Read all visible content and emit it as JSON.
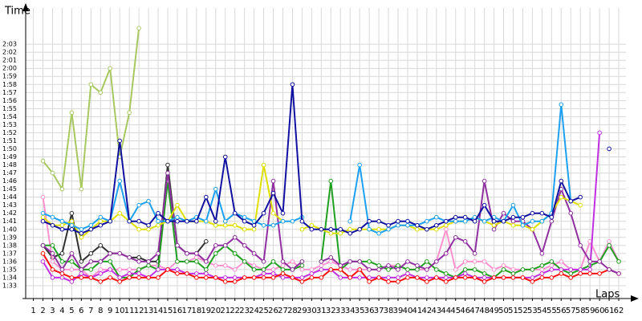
{
  "chart_data": {
    "type": "line",
    "xlabel": "Laps",
    "ylabel": "Time",
    "x": [
      1,
      2,
      3,
      4,
      5,
      6,
      7,
      8,
      9,
      10,
      11,
      12,
      13,
      14,
      15,
      16,
      17,
      18,
      19,
      20,
      21,
      22,
      23,
      24,
      25,
      26,
      27,
      28,
      29,
      30,
      31,
      32,
      33,
      34,
      35,
      36,
      37,
      38,
      39,
      40,
      41,
      42,
      43,
      44,
      45,
      46,
      47,
      48,
      49,
      50,
      51,
      52,
      53,
      54,
      55,
      56,
      57,
      58,
      59,
      60,
      61,
      62
    ],
    "xlim": [
      0.2,
      62.75
    ],
    "xticks": [
      1,
      2,
      3,
      4,
      5,
      6,
      7,
      8,
      9,
      10,
      11,
      12,
      13,
      14,
      15,
      16,
      17,
      18,
      19,
      20,
      21,
      22,
      23,
      24,
      25,
      26,
      27,
      28,
      29,
      30,
      31,
      32,
      33,
      34,
      35,
      36,
      37,
      38,
      39,
      40,
      41,
      42,
      43,
      44,
      45,
      46,
      47,
      48,
      49,
      50,
      51,
      52,
      53,
      54,
      55,
      56,
      57,
      58,
      59,
      60,
      61,
      62
    ],
    "ylim": [
      91.4,
      127.5
    ],
    "yticks": [
      {
        "value": 93,
        "label": "1:33"
      },
      {
        "value": 94,
        "label": "1:34"
      },
      {
        "value": 95,
        "label": "1:35"
      },
      {
        "value": 96,
        "label": "1:36"
      },
      {
        "value": 97,
        "label": "1:37"
      },
      {
        "value": 98,
        "label": "1:38"
      },
      {
        "value": 99,
        "label": "1:39"
      },
      {
        "value": 100,
        "label": "1:40"
      },
      {
        "value": 101,
        "label": "1:41"
      },
      {
        "value": 102,
        "label": "1:42"
      },
      {
        "value": 103,
        "label": "1:43"
      },
      {
        "value": 104,
        "label": "1:44"
      },
      {
        "value": 105,
        "label": "1:45"
      },
      {
        "value": 106,
        "label": "1:46"
      },
      {
        "value": 107,
        "label": "1:47"
      },
      {
        "value": 108,
        "label": "1:48"
      },
      {
        "value": 109,
        "label": "1:49"
      },
      {
        "value": 110,
        "label": "1:50"
      },
      {
        "value": 111,
        "label": "1:51"
      },
      {
        "value": 112,
        "label": "1:52"
      },
      {
        "value": 113,
        "label": "1:53"
      },
      {
        "value": 114,
        "label": "1:54"
      },
      {
        "value": 115,
        "label": "1:55"
      },
      {
        "value": 116,
        "label": "1:56"
      },
      {
        "value": 117,
        "label": "1:57"
      },
      {
        "value": 118,
        "label": "1:58"
      },
      {
        "value": 119,
        "label": "1:59"
      },
      {
        "value": 120,
        "label": "2:00"
      },
      {
        "value": 121,
        "label": "2:01"
      },
      {
        "value": 122,
        "label": "2:02"
      },
      {
        "value": 123,
        "label": "2:03"
      }
    ],
    "grid": true,
    "series": [
      {
        "color": "#a8c860",
        "values": [
          null,
          108.5,
          107,
          105,
          114.5,
          105,
          118,
          117,
          120,
          109,
          114.5,
          125,
          null,
          null,
          null,
          null,
          null,
          null,
          null,
          null,
          null,
          null,
          null,
          null,
          null,
          null,
          null,
          null,
          null,
          null,
          null,
          null,
          null,
          null,
          null,
          null,
          null,
          null,
          null,
          null,
          null,
          null,
          null,
          null,
          null,
          null,
          null,
          null,
          null,
          null,
          null,
          null,
          null,
          null,
          null,
          null,
          null,
          null,
          null,
          null,
          null,
          null
        ]
      },
      {
        "color": "#303030",
        "values": [
          null,
          98,
          96.5,
          97,
          102,
          96,
          97,
          98,
          97,
          97,
          96.5,
          96.5,
          96,
          96,
          108,
          98,
          97,
          97,
          98.5,
          null,
          null,
          null,
          null,
          null,
          null,
          null,
          null,
          null,
          null,
          null,
          null,
          null,
          null,
          null,
          null,
          null,
          null,
          null,
          null,
          null,
          null,
          null,
          null,
          null,
          null,
          null,
          null,
          null,
          null,
          null,
          null,
          null,
          null,
          null,
          null,
          null,
          null,
          null,
          null,
          null,
          null,
          null
        ]
      },
      {
        "color": "#ff90d0",
        "values": [
          null,
          104,
          96,
          95,
          95,
          95,
          94,
          95,
          95,
          95,
          95,
          95,
          95.5,
          95.5,
          95,
          96,
          96,
          96.5,
          96,
          95.5,
          95.5,
          95,
          96,
          95.5,
          95,
          95,
          95.5,
          96,
          95,
          95,
          95.5,
          96,
          95.5,
          95,
          95,
          95,
          95,
          95.5,
          95.5,
          95,
          95,
          95,
          96,
          100,
          95,
          96,
          96,
          96,
          95,
          95.5,
          95,
          95,
          95,
          95,
          95.5,
          96,
          95,
          95,
          98.5,
          96,
          98.5,
          96
        ]
      },
      {
        "color": "#20a020",
        "values": [
          null,
          98,
          98,
          96,
          96,
          95,
          95,
          96,
          96,
          94,
          94,
          95,
          95.5,
          95,
          106,
          96,
          96,
          96,
          95,
          97,
          98,
          97,
          96,
          95,
          95,
          96,
          95,
          95,
          95.5,
          null,
          96,
          106,
          95,
          96,
          96,
          96,
          95.5,
          95,
          95.5,
          95,
          95,
          96,
          95,
          94.5,
          94,
          95,
          95,
          94.5,
          94,
          95,
          94.5,
          95,
          95,
          95.5,
          96,
          95,
          94.5,
          95,
          95.5,
          96,
          98,
          96
        ]
      },
      {
        "color": "#c030e0",
        "values": [
          null,
          96,
          94,
          94,
          93.5,
          94.5,
          94,
          94.5,
          95,
          94,
          94.5,
          94.5,
          94,
          95,
          95,
          95,
          94.5,
          94.5,
          94.5,
          94,
          94,
          94,
          94,
          94,
          94.5,
          94.5,
          94,
          94,
          94,
          94.5,
          95,
          95,
          94,
          94,
          94,
          94,
          94,
          94,
          94,
          94.5,
          94,
          94,
          94,
          94,
          94,
          94.5,
          94,
          94,
          94,
          94,
          94,
          94,
          94,
          94.5,
          95,
          95,
          95,
          95,
          95,
          112,
          null,
          null
        ]
      },
      {
        "color": "#ff1010",
        "values": [
          null,
          97,
          95,
          94.5,
          94,
          94,
          94,
          93.5,
          94,
          93.5,
          94,
          94,
          94,
          94,
          95,
          94.5,
          94.5,
          94,
          94,
          94,
          93.5,
          93.5,
          94,
          94,
          94,
          94,
          94.5,
          94,
          93.5,
          94,
          94,
          95,
          95,
          94,
          95,
          93.5,
          94,
          93.5,
          93.5,
          94,
          94,
          93.5,
          94,
          93.5,
          94,
          94,
          94,
          93.5,
          94,
          94,
          94,
          94,
          93.5,
          94,
          94,
          94.5,
          94,
          94.5,
          94.5,
          94.5,
          95,
          94.5
        ]
      },
      {
        "color": "#9030a0",
        "values": [
          null,
          98,
          97,
          95,
          97,
          95,
          96,
          96,
          97,
          97,
          96.5,
          96,
          96,
          97,
          107,
          98,
          97,
          97,
          96,
          98,
          98,
          99,
          98,
          97,
          96,
          106,
          96,
          95,
          96,
          null,
          96,
          96.5,
          95.5,
          96,
          96,
          95,
          95,
          95.5,
          95,
          96,
          95.5,
          95,
          96,
          97,
          99,
          98.5,
          97,
          106,
          100,
          102,
          101,
          101,
          100,
          97,
          101,
          105,
          102,
          98,
          96,
          96,
          95,
          94.5
        ]
      },
      {
        "color": "#e0e000",
        "values": [
          null,
          101.5,
          100.5,
          100.5,
          101,
          99,
          100,
          101,
          101,
          102,
          101,
          100,
          100,
          100.5,
          101,
          103,
          101,
          101,
          101,
          100.5,
          100.5,
          100.5,
          100,
          100,
          108,
          102,
          101,
          null,
          100,
          100.5,
          100,
          99.5,
          99.5,
          100,
          100,
          100,
          100,
          100,
          100.5,
          100.5,
          100,
          100,
          100,
          100.5,
          101,
          101,
          101.5,
          101,
          100.5,
          101,
          100.5,
          100.5,
          100,
          101,
          102,
          104,
          103.5,
          103,
          null,
          null,
          null,
          null
        ]
      },
      {
        "color": "#1ea0f0",
        "values": [
          null,
          102,
          101.5,
          101,
          100.5,
          100,
          100.5,
          101.5,
          101,
          106,
          101,
          103,
          103.5,
          101,
          101,
          101.5,
          101,
          101.5,
          101,
          105,
          101,
          102,
          101.5,
          101,
          100.5,
          100.5,
          101,
          101,
          101.5,
          null,
          null,
          null,
          null,
          101,
          108,
          100,
          99.5,
          100,
          100.5,
          100.5,
          100.5,
          101,
          101.5,
          101,
          101,
          101,
          101.5,
          101,
          101.5,
          101,
          103,
          100.5,
          101,
          101,
          102,
          115.5,
          103.5,
          null,
          null,
          null,
          null,
          null
        ]
      },
      {
        "color": "#1010a0",
        "values": [
          null,
          101,
          100.5,
          100,
          100,
          99.5,
          100,
          100.5,
          101,
          111,
          101,
          101,
          100.5,
          102,
          101,
          101,
          101,
          101,
          104,
          101,
          109,
          102,
          101,
          100.5,
          102,
          104.5,
          102,
          118,
          101,
          100,
          100,
          100,
          100,
          99.5,
          100,
          101,
          101,
          100.5,
          101,
          101,
          100.5,
          100,
          100.5,
          101,
          101.5,
          101.5,
          101,
          103,
          101,
          101,
          101.5,
          101.5,
          102,
          102,
          101.5,
          106,
          103.5,
          104,
          null,
          null,
          110,
          null
        ]
      }
    ]
  }
}
